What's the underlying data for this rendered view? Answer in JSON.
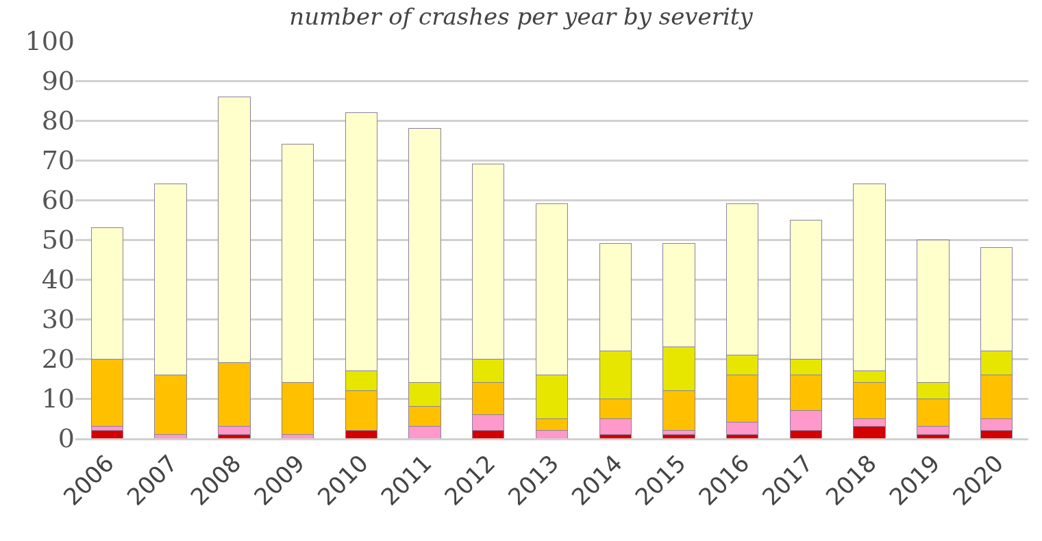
{
  "chart_data": {
    "type": "bar",
    "title": "number of crashes per year by severity",
    "stacked": true,
    "grid": "y",
    "categories": [
      "2006",
      "2007",
      "2008",
      "2009",
      "2010",
      "2011",
      "2012",
      "2013",
      "2014",
      "2015",
      "2016",
      "2017",
      "2018",
      "2019",
      "2020"
    ],
    "ylim": [
      0,
      100
    ],
    "yticks": [
      0,
      10,
      20,
      30,
      40,
      50,
      60,
      70,
      80,
      90,
      100
    ],
    "series": [
      {
        "color": "#d40000",
        "values": [
          2,
          0,
          1,
          0,
          2,
          0,
          2,
          0,
          1,
          1,
          1,
          2,
          3,
          1,
          2
        ]
      },
      {
        "color": "#ff99cc",
        "values": [
          1,
          1,
          2,
          1,
          0,
          3,
          4,
          2,
          4,
          1,
          3,
          5,
          2,
          2,
          3
        ]
      },
      {
        "color": "#ffc000",
        "values": [
          17,
          15,
          16,
          13,
          10,
          5,
          8,
          3,
          5,
          10,
          12,
          9,
          9,
          7,
          11
        ]
      },
      {
        "color": "#e6e600",
        "values": [
          0,
          0,
          0,
          0,
          5,
          6,
          6,
          11,
          12,
          11,
          5,
          4,
          3,
          4,
          6
        ]
      },
      {
        "color": "#ffffcc",
        "values": [
          33,
          48,
          67,
          60,
          65,
          64,
          49,
          43,
          27,
          26,
          38,
          35,
          47,
          36,
          26
        ]
      }
    ]
  }
}
